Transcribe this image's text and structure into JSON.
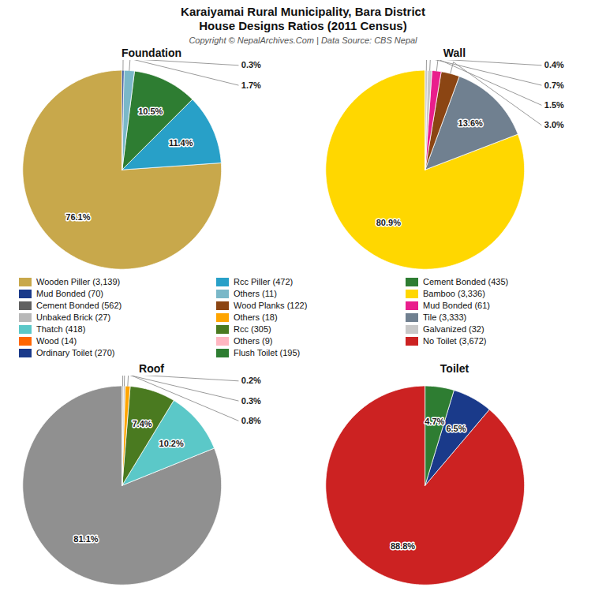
{
  "title": "Karaiyamai Rural Municipality, Bara District",
  "subtitle": "House Designs Ratios (2011 Census)",
  "caption": "Copyright © NepalArchives.Com | Data Source: CBS Nepal",
  "legend_items": [
    {
      "label": "Wooden Piller (3,139)",
      "color": "#c8a84b"
    },
    {
      "label": "Rcc Piller (472)",
      "color": "#28a0c8"
    },
    {
      "label": "Cement Bonded (435)",
      "color": "#2e7d32"
    },
    {
      "label": "Mud Bonded (70)",
      "color": "#1a3a8a"
    },
    {
      "label": "Others (11)",
      "color": "#7ab8c8"
    },
    {
      "label": "Bamboo (3,336)",
      "color": "#ffd700"
    },
    {
      "label": "Cement Bonded (562)",
      "color": "#606060"
    },
    {
      "label": "Wood Planks (122)",
      "color": "#8b4513"
    },
    {
      "label": "Mud Bonded (61)",
      "color": "#e91e8c"
    },
    {
      "label": "Unbaked Brick (27)",
      "color": "#b8b8b8"
    },
    {
      "label": "Others (18)",
      "color": "#ffa500"
    },
    {
      "label": "Tile (3,333)",
      "color": "#708090"
    },
    {
      "label": "Thatch (418)",
      "color": "#5bc8c8"
    },
    {
      "label": "Rcc (305)",
      "color": "#4a7a20"
    },
    {
      "label": "Galvanized (32)",
      "color": "#c8c8c8"
    },
    {
      "label": "Wood (14)",
      "color": "#ff6600"
    },
    {
      "label": "Others (9)",
      "color": "#ffb6c1"
    },
    {
      "label": "No Toilet (3,672)",
      "color": "#cc2222"
    },
    {
      "label": "Ordinary Toilet (270)",
      "color": "#1a3a8a"
    },
    {
      "label": "Flush Toilet (195)",
      "color": "#2e7d32"
    }
  ],
  "chart_data": [
    {
      "type": "pie",
      "title": "Foundation",
      "values": [
        76.1,
        11.4,
        10.5,
        1.7,
        0.3
      ],
      "value_labels": [
        "76.1%",
        "11.4%",
        "10.5%",
        "1.7%",
        "0.3%"
      ],
      "colors": [
        "#c8a84b",
        "#28a0c8",
        "#2e7d32",
        "#7ab8c8",
        "#1a3a8a"
      ],
      "data_labels": true
    },
    {
      "type": "pie",
      "title": "Wall",
      "values": [
        80.9,
        13.6,
        3.0,
        1.5,
        0.7,
        0.4
      ],
      "value_labels": [
        "80.9%",
        "13.6%",
        "3.0%",
        "1.5%",
        "0.7%",
        "0.4%"
      ],
      "colors": [
        "#ffd700",
        "#708090",
        "#8b4513",
        "#e91e8c",
        "#c8c8c8",
        "#c8c8c8"
      ],
      "data_labels": true
    },
    {
      "type": "pie",
      "title": "Roof",
      "values": [
        81.1,
        10.2,
        7.4,
        0.8,
        0.3,
        0.2
      ],
      "value_labels": [
        "81.1%",
        "10.2%",
        "7.4%",
        "0.8%",
        "0.3%",
        "0.2%"
      ],
      "colors": [
        "#909090",
        "#5bc8c8",
        "#4a7a20",
        "#ffa500",
        "#c8c8c8",
        "#b0b0b0"
      ],
      "data_labels": true
    },
    {
      "type": "pie",
      "title": "Toilet",
      "values": [
        88.8,
        6.5,
        4.7
      ],
      "value_labels": [
        "88.8%",
        "6.5%",
        "4.7%"
      ],
      "colors": [
        "#cc2222",
        "#1a3a8a",
        "#2e7d32"
      ],
      "data_labels": true
    }
  ]
}
